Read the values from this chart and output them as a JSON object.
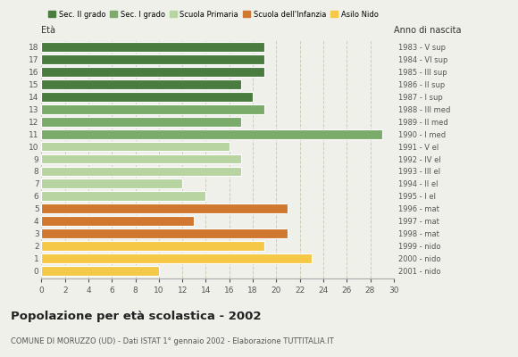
{
  "ages": [
    18,
    17,
    16,
    15,
    14,
    13,
    12,
    11,
    10,
    9,
    8,
    7,
    6,
    5,
    4,
    3,
    2,
    1,
    0
  ],
  "values": [
    19,
    19,
    19,
    17,
    18,
    19,
    17,
    29,
    16,
    17,
    17,
    12,
    14,
    21,
    13,
    21,
    19,
    23,
    10
  ],
  "categories": [
    "Sec. II grado",
    "Sec. I grado",
    "Scuola Primaria",
    "Scuola dell'Infanzia",
    "Asilo Nido"
  ],
  "colors": [
    "#4a7c40",
    "#7aab6a",
    "#b8d4a0",
    "#d07830",
    "#f5c848"
  ],
  "age_category": [
    0,
    0,
    0,
    0,
    0,
    1,
    1,
    1,
    2,
    2,
    2,
    2,
    2,
    3,
    3,
    3,
    4,
    4,
    4
  ],
  "right_labels": [
    "1983 - V sup",
    "1984 - VI sup",
    "1985 - III sup",
    "1986 - II sup",
    "1987 - I sup",
    "1988 - III med",
    "1989 - II med",
    "1990 - I med",
    "1991 - V el",
    "1992 - IV el",
    "1993 - III el",
    "1994 - II el",
    "1995 - I el",
    "1996 - mat",
    "1997 - mat",
    "1998 - mat",
    "1999 - nido",
    "2000 - nido",
    "2001 - nido"
  ],
  "title": "Popolazione per età scolastica - 2002",
  "subtitle": "COMUNE DI MORUZZO (UD) - Dati ISTAT 1° gennaio 2002 - Elaborazione TUTTITALIA.IT",
  "xlabel_left": "Età",
  "xlabel_right": "Anno di nascita",
  "xlim": [
    0,
    30
  ],
  "xticks": [
    0,
    2,
    4,
    6,
    8,
    10,
    12,
    14,
    16,
    18,
    20,
    22,
    24,
    26,
    28,
    30
  ],
  "background_color": "#f0f0eb",
  "grid_color": "#ccccbb"
}
